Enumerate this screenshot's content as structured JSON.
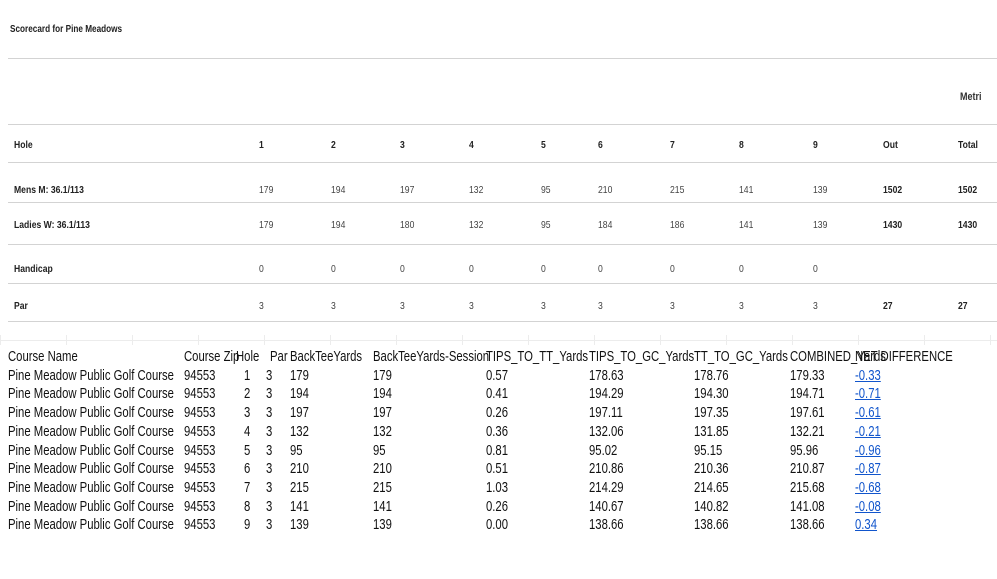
{
  "scorecard": {
    "title": "Scorecard for Pine Meadows",
    "metric_label": "Metri",
    "header": {
      "label": "Hole",
      "cols": [
        "1",
        "2",
        "3",
        "4",
        "5",
        "6",
        "7",
        "8",
        "9",
        "Out",
        "Total"
      ]
    },
    "rows": [
      {
        "label": "Mens M: 36.1/113",
        "cols": [
          "179",
          "194",
          "197",
          "132",
          "95",
          "210",
          "215",
          "141",
          "139",
          "1502",
          "1502"
        ]
      },
      {
        "label": "Ladies W: 36.1/113",
        "cols": [
          "179",
          "194",
          "180",
          "132",
          "95",
          "184",
          "186",
          "141",
          "139",
          "1430",
          "1430"
        ]
      },
      {
        "label": "Handicap",
        "cols": [
          "0",
          "0",
          "0",
          "0",
          "0",
          "0",
          "0",
          "0",
          "0",
          "",
          ""
        ]
      },
      {
        "label": "Par",
        "cols": [
          "3",
          "3",
          "3",
          "3",
          "3",
          "3",
          "3",
          "3",
          "3",
          "27",
          "27"
        ]
      }
    ]
  },
  "sheet": {
    "headers": [
      "Course Name",
      "Course Zip",
      "Hole",
      "Par",
      "BackTeeYards",
      "BackTeeYards-Session",
      "TIPS_TO_TT_Yards",
      "TIPS_TO_GC_Yards",
      "TT_TO_GC_Yards",
      "COMBINED_Yards",
      "NET DIFFERENCE"
    ],
    "rows": [
      [
        "Pine Meadow Public Golf Course",
        "94553",
        "1",
        "3",
        "179",
        "179",
        "0.57",
        "178.63",
        "178.76",
        "179.33",
        "-0.33"
      ],
      [
        "Pine Meadow Public Golf Course",
        "94553",
        "2",
        "3",
        "194",
        "194",
        "0.41",
        "194.29",
        "194.30",
        "194.71",
        "-0.71"
      ],
      [
        "Pine Meadow Public Golf Course",
        "94553",
        "3",
        "3",
        "197",
        "197",
        "0.26",
        "197.11",
        "197.35",
        "197.61",
        "-0.61"
      ],
      [
        "Pine Meadow Public Golf Course",
        "94553",
        "4",
        "3",
        "132",
        "132",
        "0.36",
        "132.06",
        "131.85",
        "132.21",
        "-0.21"
      ],
      [
        "Pine Meadow Public Golf Course",
        "94553",
        "5",
        "3",
        "95",
        "95",
        "0.81",
        "95.02",
        "95.15",
        "95.96",
        "-0.96"
      ],
      [
        "Pine Meadow Public Golf Course",
        "94553",
        "6",
        "3",
        "210",
        "210",
        "0.51",
        "210.86",
        "210.36",
        "210.87",
        "-0.87"
      ],
      [
        "Pine Meadow Public Golf Course",
        "94553",
        "7",
        "3",
        "215",
        "215",
        "1.03",
        "214.29",
        "214.65",
        "215.68",
        "-0.68"
      ],
      [
        "Pine Meadow Public Golf Course",
        "94553",
        "8",
        "3",
        "141",
        "141",
        "0.26",
        "140.67",
        "140.82",
        "141.08",
        "-0.08"
      ],
      [
        "Pine Meadow Public Golf Course",
        "94553",
        "9",
        "3",
        "139",
        "139",
        "0.00",
        "138.66",
        "138.66",
        "138.66",
        "0.34"
      ]
    ]
  },
  "colors": {
    "link": "#1155cc",
    "rule": "#d3d3d3"
  }
}
